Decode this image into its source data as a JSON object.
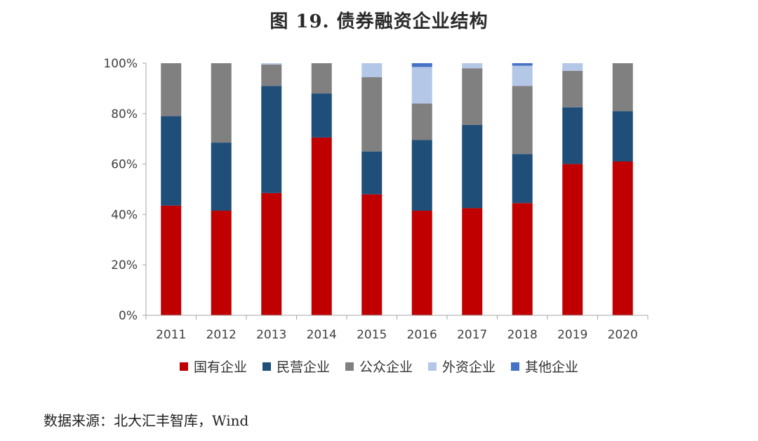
{
  "title": "图 19. 债券融资企业结构",
  "source": "数据来源：北大汇丰智库，Wind",
  "chart_data": {
    "type": "bar",
    "stacked": true,
    "categories": [
      "2011",
      "2012",
      "2013",
      "2014",
      "2015",
      "2016",
      "2017",
      "2018",
      "2019",
      "2020"
    ],
    "y_ticks": [
      "0%",
      "20%",
      "40%",
      "60%",
      "80%",
      "100%"
    ],
    "ylim": [
      0,
      100
    ],
    "series": [
      {
        "name": "国有企业",
        "color": "#c00000",
        "values": [
          43.5,
          41.5,
          48.5,
          70.5,
          48.0,
          41.5,
          42.5,
          44.5,
          60.0,
          61.0
        ]
      },
      {
        "name": "民营企业",
        "color": "#1f4e79",
        "values": [
          35.5,
          27.0,
          42.5,
          17.5,
          17.0,
          28.0,
          33.0,
          19.5,
          22.5,
          20.0
        ]
      },
      {
        "name": "公众企业",
        "color": "#808080",
        "values": [
          21.0,
          31.5,
          8.5,
          12.0,
          29.5,
          14.5,
          22.5,
          27.0,
          14.5,
          19.0
        ]
      },
      {
        "name": "外资企业",
        "color": "#b4c7e7",
        "values": [
          0.0,
          0.0,
          0.5,
          0.0,
          5.5,
          14.5,
          2.0,
          8.0,
          3.0,
          0.0
        ]
      },
      {
        "name": "其他企业",
        "color": "#4472c4",
        "values": [
          0.0,
          0.0,
          0.0,
          0.0,
          0.0,
          1.5,
          0.0,
          1.0,
          0.0,
          0.0
        ]
      }
    ],
    "legend_position": "bottom"
  }
}
